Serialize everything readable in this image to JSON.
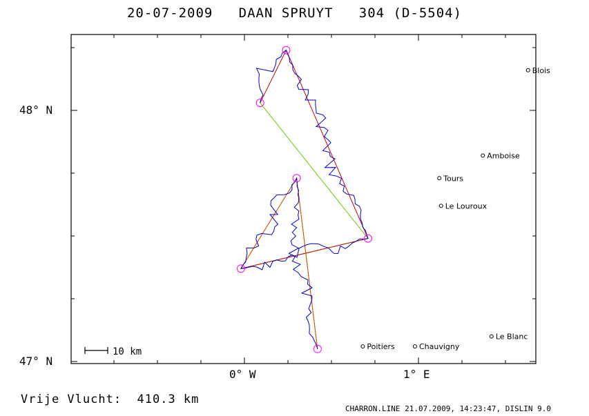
{
  "title": "20-07-2009   DAAN SPRUYT   304 (D-5504)",
  "distance": "Vrije Vlucht:  410.3 km",
  "footer": "CHARRON.LINE 21.07.2009, 14:23:47, DISLIN 9.0",
  "scale_label": "10 km",
  "axes": {
    "lat_labels": [
      "48° N",
      "47° N"
    ],
    "lon_labels": [
      "0° W",
      "1° E"
    ]
  },
  "cities": [
    {
      "name": "Blois",
      "lon": 1.63,
      "lat": 48.16
    },
    {
      "name": "Amboise",
      "lon": 1.37,
      "lat": 47.82
    },
    {
      "name": "Tours",
      "lon": 1.12,
      "lat": 47.73
    },
    {
      "name": "Le Louroux",
      "lon": 1.13,
      "lat": 47.62
    },
    {
      "name": "Poitiers",
      "lon": 0.68,
      "lat": 47.06
    },
    {
      "name": "Chauvigny",
      "lon": 0.98,
      "lat": 47.06
    },
    {
      "name": "Le Blanc",
      "lon": 1.42,
      "lat": 47.1
    }
  ],
  "turnpoints": [
    {
      "lon": 0.24,
      "lat": 48.24
    },
    {
      "lon": 0.09,
      "lat": 48.03
    },
    {
      "lon": 0.3,
      "lat": 47.73
    },
    {
      "lon": -0.02,
      "lat": 47.37
    },
    {
      "lon": 0.42,
      "lat": 47.05
    },
    {
      "lon": 0.71,
      "lat": 47.49
    }
  ],
  "colors": {
    "track": "#0000cc",
    "red_route": "#cc0000",
    "green_route": "#66cc00",
    "orange_route": "#cc6600",
    "turnpoint": "#ff00ff"
  }
}
